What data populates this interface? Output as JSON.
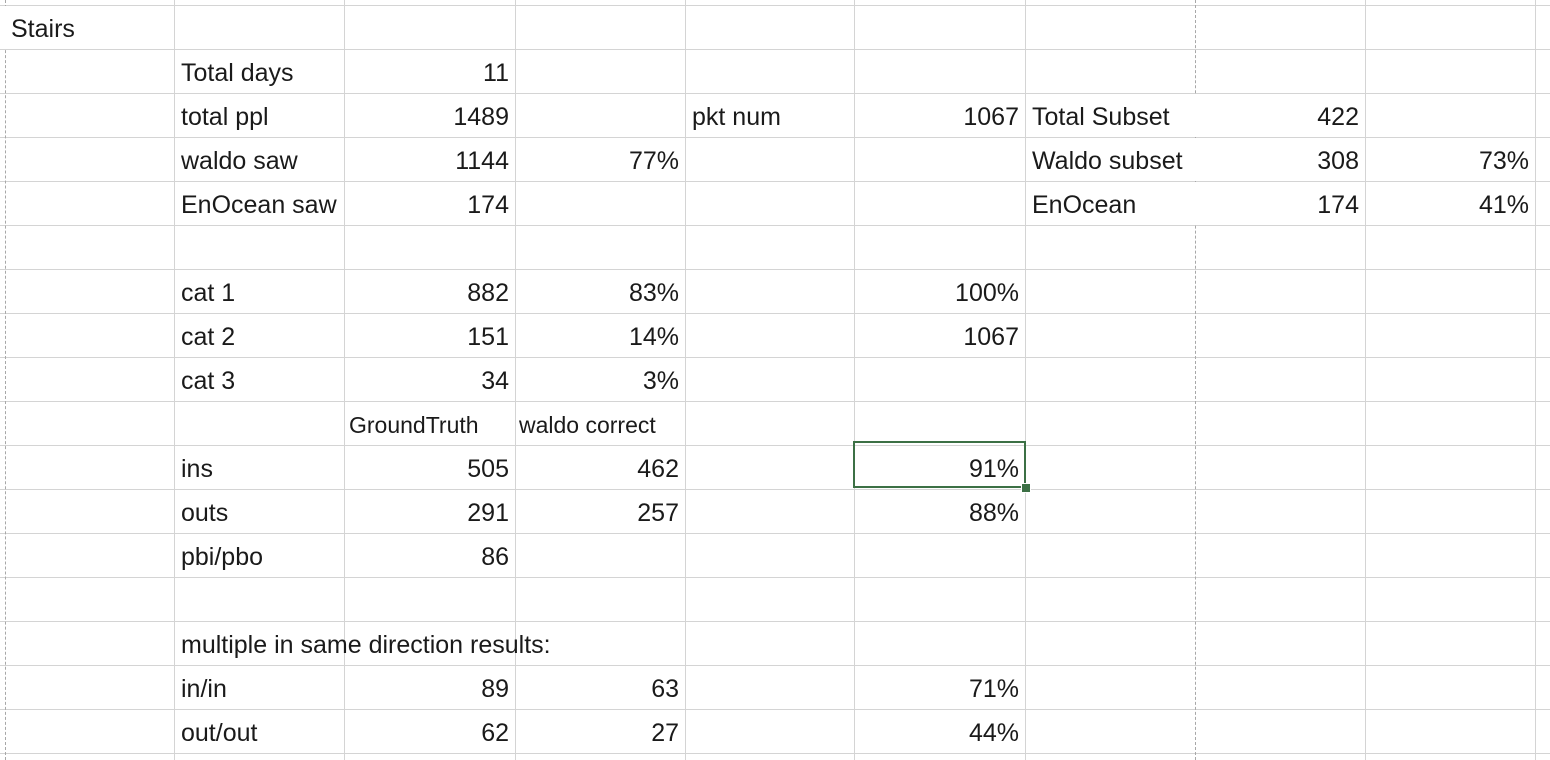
{
  "sheet": {
    "title": "Stairs",
    "summary": {
      "total_days_label": "Total days",
      "total_days": "11",
      "total_ppl_label": "total ppl",
      "total_ppl": "1489",
      "waldo_saw_label": "waldo saw",
      "waldo_saw": "1144",
      "waldo_saw_pct": "77%",
      "enocean_saw_label": "EnOcean saw",
      "enocean_saw": "174"
    },
    "packets": {
      "label": "pkt num",
      "value": "1067"
    },
    "subset": {
      "total_label": "Total Subset",
      "total": "422",
      "waldo_label": "Waldo subset",
      "waldo": "308",
      "waldo_pct": "73%",
      "enocean_label": "EnOcean",
      "enocean": "174",
      "enocean_pct": "41%"
    },
    "categories": [
      {
        "label": "cat 1",
        "count": "882",
        "pct": "83%",
        "extra": "100%"
      },
      {
        "label": "cat 2",
        "count": "151",
        "pct": "14%",
        "extra": "1067"
      },
      {
        "label": "cat 3",
        "count": "34",
        "pct": "3%",
        "extra": ""
      }
    ],
    "accuracy": {
      "col_ground_truth": "GroundTruth",
      "col_waldo_correct": "waldo correct",
      "rows": [
        {
          "label": "ins",
          "ground_truth": "505",
          "correct": "462",
          "pct": "91%"
        },
        {
          "label": "outs",
          "ground_truth": "291",
          "correct": "257",
          "pct": "88%"
        },
        {
          "label": "pbi/pbo",
          "ground_truth": "86",
          "correct": "",
          "pct": ""
        }
      ]
    },
    "multiple": {
      "heading": "multiple in same direction results:",
      "rows": [
        {
          "label": "in/in",
          "ground_truth": "89",
          "correct": "63",
          "pct": "71%"
        },
        {
          "label": "out/out",
          "ground_truth": "62",
          "correct": "27",
          "pct": "44%"
        }
      ]
    },
    "selected_cell_value": "91%",
    "selection_color": "#3c7045",
    "gridline_color": "#d4d4d4"
  }
}
